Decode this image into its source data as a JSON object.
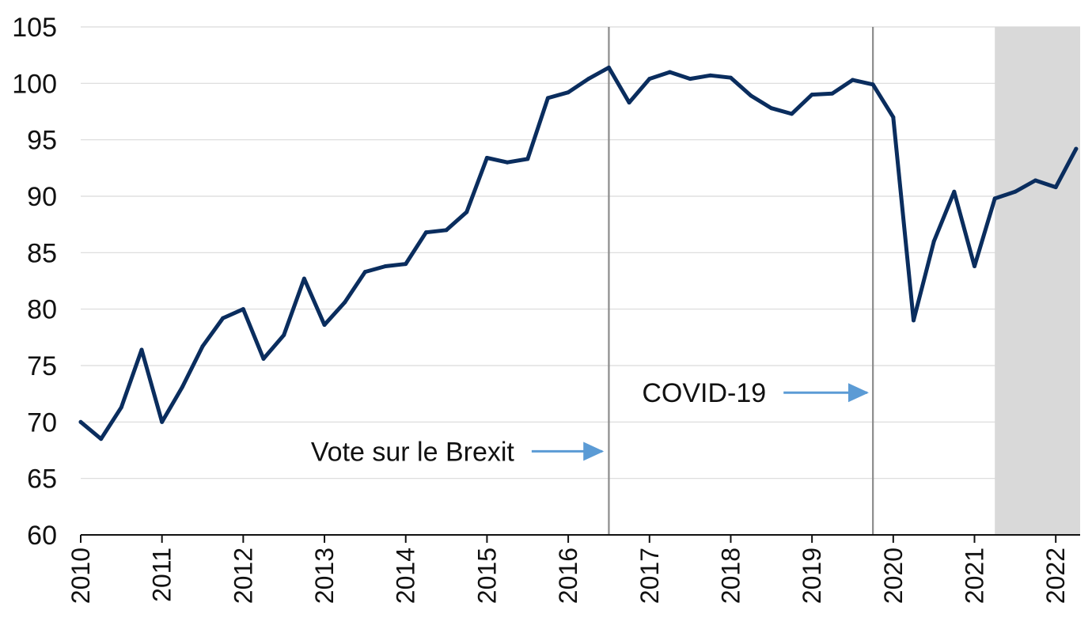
{
  "chart_data": {
    "type": "line",
    "title": "",
    "xlabel": "",
    "ylabel": "",
    "ylim": [
      60,
      105
    ],
    "xlim": [
      2010,
      2022.3
    ],
    "y_ticks": [
      "60",
      "65",
      "70",
      "75",
      "80",
      "85",
      "90",
      "95",
      "100",
      "105"
    ],
    "x_ticks": [
      "2010",
      "2011",
      "2012",
      "2013",
      "2014",
      "2015",
      "2016",
      "2017",
      "2018",
      "2019",
      "2020",
      "2021",
      "2022"
    ],
    "grid": true,
    "colors": {
      "line": "#0a2d5e",
      "grid": "#d9d9d9",
      "vline": "#8c8c8c",
      "shade": "#d9d9d9",
      "arrow": "#5b9bd5"
    },
    "series": [
      {
        "name": "",
        "x": [
          2010.0,
          2010.25,
          2010.5,
          2010.75,
          2011.0,
          2011.25,
          2011.5,
          2011.75,
          2012.0,
          2012.25,
          2012.5,
          2012.75,
          2013.0,
          2013.25,
          2013.5,
          2013.75,
          2014.0,
          2014.25,
          2014.5,
          2014.75,
          2015.0,
          2015.25,
          2015.5,
          2015.75,
          2016.0,
          2016.25,
          2016.5,
          2016.75,
          2017.0,
          2017.25,
          2017.5,
          2017.75,
          2018.0,
          2018.25,
          2018.5,
          2018.75,
          2019.0,
          2019.25,
          2019.5,
          2019.75,
          2020.0,
          2020.25,
          2020.5,
          2020.75,
          2021.0,
          2021.25,
          2021.5,
          2021.75,
          2022.0,
          2022.25
        ],
        "values": [
          70.0,
          68.5,
          71.3,
          76.4,
          70.0,
          73.1,
          76.7,
          79.2,
          80.0,
          75.6,
          77.7,
          82.7,
          78.6,
          80.6,
          83.3,
          83.8,
          84.0,
          86.8,
          87.0,
          88.6,
          93.4,
          93.0,
          93.3,
          98.7,
          99.2,
          100.4,
          101.4,
          98.3,
          100.4,
          101.0,
          100.4,
          100.7,
          100.5,
          98.9,
          97.8,
          97.3,
          99.0,
          99.1,
          100.3,
          99.9,
          97.0,
          79.0,
          86.0,
          90.4,
          83.8,
          89.8,
          90.4,
          91.4,
          90.8,
          94.2
        ]
      }
    ],
    "vertical_lines": [
      2016.5,
      2019.75
    ],
    "shaded_region": [
      2021.25,
      2022.3
    ],
    "annotations": [
      {
        "text": "Vote sur le Brexit",
        "y": 67.4,
        "arrow_from": 2015.55,
        "arrow_to": 2016.42
      },
      {
        "text": "COVID-19",
        "y": 72.6,
        "arrow_from": 2018.65,
        "arrow_to": 2019.68
      }
    ]
  }
}
